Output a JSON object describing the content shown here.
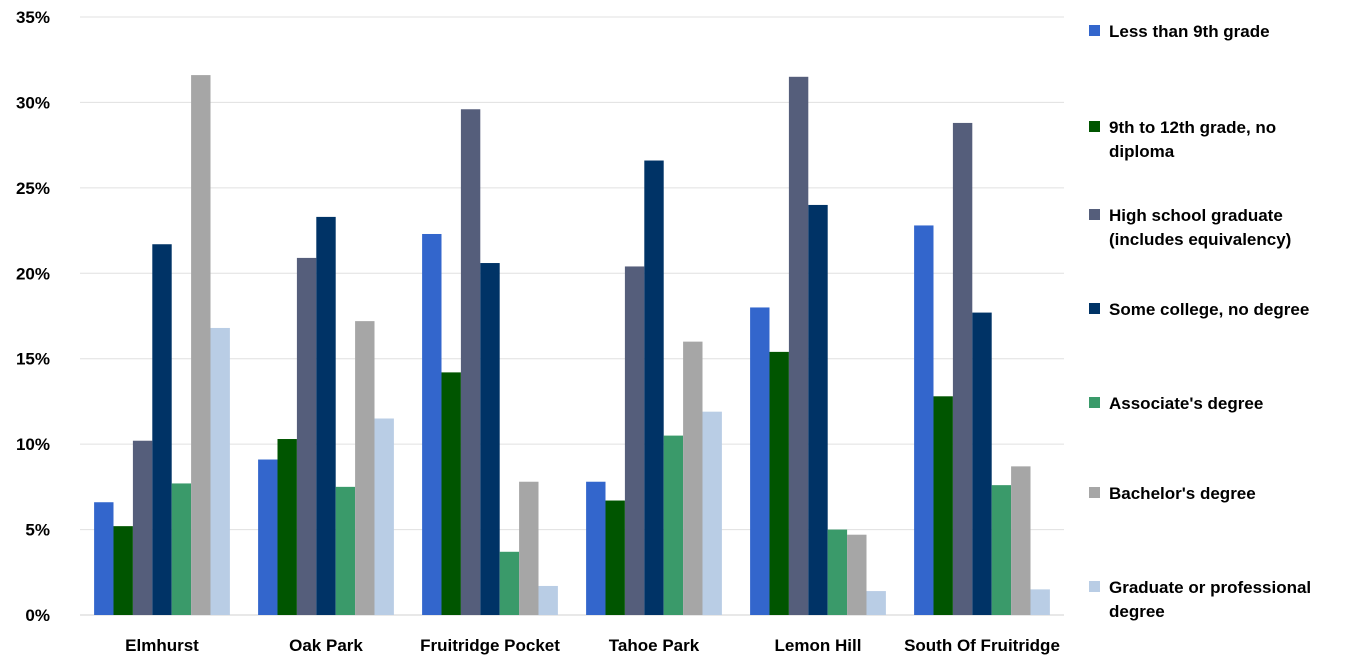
{
  "chart_data": {
    "type": "bar",
    "categories": [
      "Elmhurst",
      "Oak Park",
      "Fruitridge Pocket",
      "Tahoe Park",
      "Lemon Hill",
      "South Of Fruitridge"
    ],
    "ylim": [
      0,
      35
    ],
    "yticks": [
      "0%",
      "5%",
      "10%",
      "15%",
      "20%",
      "25%",
      "30%",
      "35%"
    ],
    "grid": true,
    "legend_position": "right",
    "series": [
      {
        "name": "Less than 9th grade",
        "color": "#3366cc",
        "values": [
          6.6,
          9.1,
          22.3,
          7.8,
          18.0,
          22.8
        ]
      },
      {
        "name": "9th to 12th grade, no diploma",
        "color": "#005500",
        "values": [
          5.2,
          10.3,
          14.2,
          6.7,
          15.4,
          12.8
        ]
      },
      {
        "name": "High school graduate (includes equivalency)",
        "color": "#555e7b",
        "values": [
          10.2,
          20.9,
          29.6,
          20.4,
          31.5,
          28.8
        ]
      },
      {
        "name": "Some college, no degree",
        "color": "#003366",
        "values": [
          21.7,
          23.3,
          20.6,
          26.6,
          24.0,
          17.7
        ]
      },
      {
        "name": "Associate's degree",
        "color": "#3a9a6a",
        "values": [
          7.7,
          7.5,
          3.7,
          10.5,
          5.0,
          7.6
        ]
      },
      {
        "name": "Bachelor's degree",
        "color": "#a6a6a6",
        "values": [
          31.6,
          17.2,
          7.8,
          16.0,
          4.7,
          8.7
        ]
      },
      {
        "name": "Graduate or professional degree",
        "color": "#b9cde5",
        "values": [
          16.8,
          11.5,
          1.7,
          11.9,
          1.4,
          1.5
        ]
      }
    ]
  },
  "legend": {
    "items": [
      "Less than 9th grade",
      "9th to 12th grade, no diploma",
      "High school graduate (includes equivalency)",
      "Some college, no degree",
      "Associate's degree",
      "Bachelor's degree",
      "Graduate or professional degree"
    ]
  }
}
